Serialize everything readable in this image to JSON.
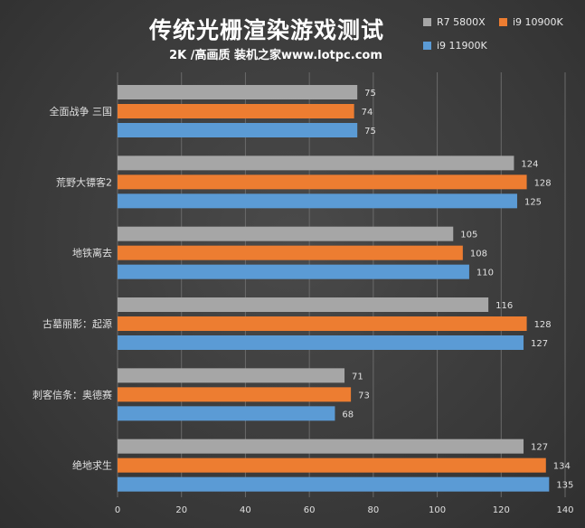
{
  "header": {
    "title": "传统光栅渲染游戏测试",
    "subtitle": "2K /高画质 装机之家www.lotpc.com"
  },
  "colors": {
    "r7": "#a6a6a6",
    "i9_10900k": "#ed7d31",
    "i9_11900k": "#5b9bd5",
    "grid": "#6a6a6a",
    "label": "#e0e0e0"
  },
  "chart_data": {
    "type": "bar",
    "orientation": "horizontal",
    "title": "传统光栅渲染游戏测试",
    "subtitle": "2K /高画质 装机之家www.lotpc.com",
    "categories": [
      "全面战争 三国",
      "荒野大镖客2",
      "地铁离去",
      "古墓丽影：起源",
      "刺客信条：奥德赛",
      "绝地求生"
    ],
    "series": [
      {
        "name": "R7 5800X",
        "color": "#a6a6a6",
        "values": [
          75,
          124,
          105,
          116,
          71,
          127
        ]
      },
      {
        "name": "i9 10900K",
        "color": "#ed7d31",
        "values": [
          74,
          128,
          108,
          128,
          73,
          134
        ]
      },
      {
        "name": "i9 11900K",
        "color": "#5b9bd5",
        "values": [
          75,
          125,
          110,
          127,
          68,
          135
        ]
      }
    ],
    "xlim": [
      0,
      140
    ],
    "xticks": [
      0,
      20,
      40,
      60,
      80,
      100,
      120,
      140
    ],
    "grid": true,
    "legend_position": "top-right",
    "data_labels": true
  }
}
